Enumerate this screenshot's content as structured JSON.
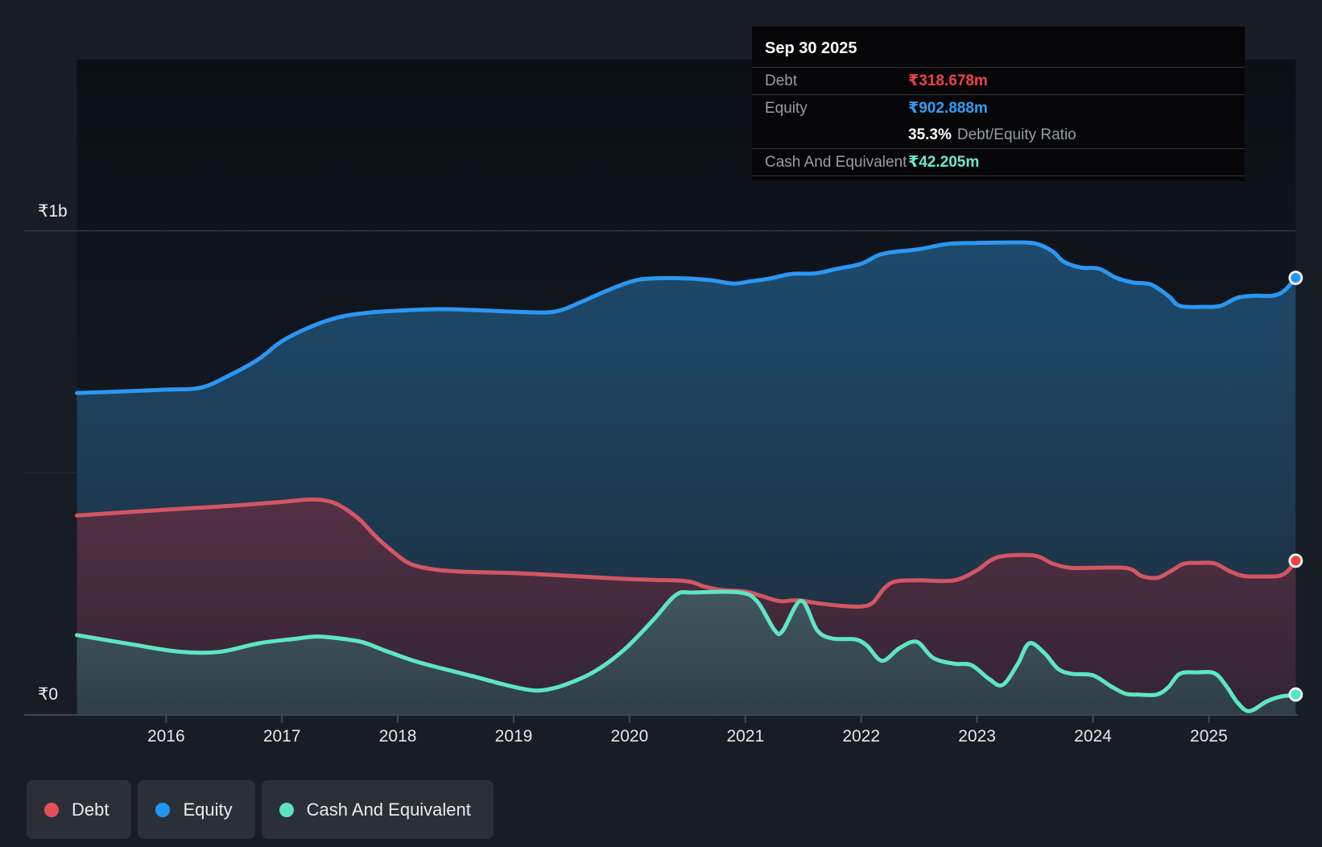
{
  "page": {
    "background": "#171c25"
  },
  "tooltip": {
    "date": "Sep 30 2025",
    "debt_label": "Debt",
    "debt_value": "₹318.678m",
    "debt_color": "#ef4146",
    "equity_label": "Equity",
    "equity_value": "₹902.888m",
    "equity_color": "#2f9ff4",
    "ratio_value": "35.3%",
    "ratio_label": "Debt/Equity Ratio",
    "cash_label": "Cash And Equivalent",
    "cash_value": "₹42.205m",
    "cash_color": "#6fe8cc"
  },
  "y_axis": {
    "top_label": "₹1b",
    "zero_label": "₹0"
  },
  "x_axis": {
    "years": [
      "2016",
      "2017",
      "2018",
      "2019",
      "2020",
      "2021",
      "2022",
      "2023",
      "2024",
      "2025"
    ]
  },
  "legend": [
    {
      "label": "Debt",
      "color": "#e4505a"
    },
    {
      "label": "Equity",
      "color": "#2196f3"
    },
    {
      "label": "Cash And Equivalent",
      "color": "#5ee3c1"
    }
  ],
  "chart_data": {
    "type": "area",
    "title": "",
    "unit": "INR millions",
    "x_range": [
      2015.23,
      2025.75
    ],
    "ylim": [
      0,
      1000
    ],
    "gridlines": [
      {
        "value": 1000,
        "label": "₹1b"
      },
      {
        "value": 500,
        "label": ""
      },
      {
        "value": 0,
        "label": "₹0"
      }
    ],
    "x_ticks": [
      2016,
      2017,
      2018,
      2019,
      2020,
      2021,
      2022,
      2023,
      2024,
      2025
    ],
    "legend_position": "bottom-left",
    "grid_colors": {
      "major": "#363d47",
      "minor": "#252b34",
      "axis": "#40464f"
    },
    "plot_bg_gradient": [
      "#0b0f16",
      "#18202a"
    ],
    "series": [
      {
        "name": "Equity",
        "line_color": "#2b97f1",
        "dot_color": "#2196f3",
        "fill_top": "#1d4a6c",
        "fill_bottom": "#1e2c3a",
        "end_value": 902.888,
        "points": [
          [
            2015.23,
            665
          ],
          [
            2015.6,
            668
          ],
          [
            2016,
            672
          ],
          [
            2016.3,
            676
          ],
          [
            2016.55,
            702
          ],
          [
            2016.8,
            735
          ],
          [
            2017,
            772
          ],
          [
            2017.25,
            802
          ],
          [
            2017.5,
            822
          ],
          [
            2017.75,
            831
          ],
          [
            2018,
            835
          ],
          [
            2018.3,
            838
          ],
          [
            2018.6,
            837
          ],
          [
            2019,
            833
          ],
          [
            2019.35,
            833
          ],
          [
            2019.6,
            855
          ],
          [
            2019.8,
            876
          ],
          [
            2020,
            894
          ],
          [
            2020.15,
            901
          ],
          [
            2020.45,
            902
          ],
          [
            2020.7,
            898
          ],
          [
            2020.9,
            891
          ],
          [
            2021.05,
            896
          ],
          [
            2021.2,
            901
          ],
          [
            2021.4,
            911
          ],
          [
            2021.6,
            912
          ],
          [
            2021.8,
            922
          ],
          [
            2022,
            932
          ],
          [
            2022.15,
            950
          ],
          [
            2022.3,
            957
          ],
          [
            2022.5,
            962
          ],
          [
            2022.75,
            973
          ],
          [
            2023,
            975
          ],
          [
            2023.3,
            976
          ],
          [
            2023.5,
            974
          ],
          [
            2023.65,
            958
          ],
          [
            2023.75,
            936
          ],
          [
            2023.9,
            924
          ],
          [
            2024.05,
            922
          ],
          [
            2024.2,
            903
          ],
          [
            2024.35,
            893
          ],
          [
            2024.5,
            889
          ],
          [
            2024.65,
            866
          ],
          [
            2024.75,
            845
          ],
          [
            2024.95,
            843
          ],
          [
            2025.1,
            845
          ],
          [
            2025.25,
            862
          ],
          [
            2025.4,
            866
          ],
          [
            2025.55,
            866
          ],
          [
            2025.65,
            876
          ],
          [
            2025.75,
            902.888
          ]
        ]
      },
      {
        "name": "Debt",
        "line_color": "#d25663",
        "dot_color": "#ee4340",
        "fill_top": "#543045",
        "fill_bottom": "#322432",
        "end_value": 318.678,
        "points": [
          [
            2015.23,
            412
          ],
          [
            2015.6,
            418
          ],
          [
            2016,
            424
          ],
          [
            2016.5,
            431
          ],
          [
            2017,
            440
          ],
          [
            2017.25,
            445
          ],
          [
            2017.45,
            438
          ],
          [
            2017.65,
            408
          ],
          [
            2017.8,
            371
          ],
          [
            2017.95,
            339
          ],
          [
            2018.1,
            313
          ],
          [
            2018.3,
            301
          ],
          [
            2018.55,
            296
          ],
          [
            2019,
            293
          ],
          [
            2019.5,
            287
          ],
          [
            2019.95,
            281
          ],
          [
            2020.2,
            279
          ],
          [
            2020.5,
            276
          ],
          [
            2020.65,
            265
          ],
          [
            2020.8,
            258
          ],
          [
            2021,
            255
          ],
          [
            2021.15,
            245
          ],
          [
            2021.3,
            235
          ],
          [
            2021.45,
            237
          ],
          [
            2021.65,
            230
          ],
          [
            2021.85,
            225
          ],
          [
            2022,
            224
          ],
          [
            2022.1,
            232
          ],
          [
            2022.2,
            262
          ],
          [
            2022.3,
            276
          ],
          [
            2022.5,
            278
          ],
          [
            2022.8,
            278
          ],
          [
            2023,
            299
          ],
          [
            2023.12,
            320
          ],
          [
            2023.25,
            329
          ],
          [
            2023.5,
            329
          ],
          [
            2023.65,
            313
          ],
          [
            2023.8,
            304
          ],
          [
            2024,
            304
          ],
          [
            2024.3,
            303
          ],
          [
            2024.42,
            287
          ],
          [
            2024.55,
            283
          ],
          [
            2024.65,
            294
          ],
          [
            2024.78,
            312
          ],
          [
            2024.9,
            314
          ],
          [
            2025.05,
            313
          ],
          [
            2025.18,
            297
          ],
          [
            2025.3,
            287
          ],
          [
            2025.45,
            286
          ],
          [
            2025.6,
            287
          ],
          [
            2025.68,
            297
          ],
          [
            2025.75,
            318.678
          ]
        ]
      },
      {
        "name": "Cash And Equivalent",
        "line_color": "#5fe5c3",
        "dot_color": "#52e5c8",
        "fill_top": "#41575f",
        "fill_bottom": "#2f3e46",
        "end_value": 42.205,
        "points": [
          [
            2015.23,
            165
          ],
          [
            2015.7,
            146
          ],
          [
            2016.1,
            131
          ],
          [
            2016.45,
            130
          ],
          [
            2016.8,
            148
          ],
          [
            2017.1,
            157
          ],
          [
            2017.3,
            162
          ],
          [
            2017.5,
            158
          ],
          [
            2017.7,
            150
          ],
          [
            2017.9,
            132
          ],
          [
            2018.15,
            111
          ],
          [
            2018.4,
            95
          ],
          [
            2018.65,
            80
          ],
          [
            2018.9,
            64
          ],
          [
            2019.1,
            53
          ],
          [
            2019.25,
            51
          ],
          [
            2019.45,
            63
          ],
          [
            2019.7,
            90
          ],
          [
            2019.95,
            134
          ],
          [
            2020.2,
            195
          ],
          [
            2020.4,
            248
          ],
          [
            2020.55,
            253
          ],
          [
            2020.95,
            253
          ],
          [
            2021.1,
            235
          ],
          [
            2021.25,
            176
          ],
          [
            2021.32,
            173
          ],
          [
            2021.48,
            236
          ],
          [
            2021.62,
            175
          ],
          [
            2021.75,
            158
          ],
          [
            2021.95,
            156
          ],
          [
            2022.05,
            143
          ],
          [
            2022.18,
            112
          ],
          [
            2022.33,
            138
          ],
          [
            2022.48,
            151
          ],
          [
            2022.62,
            118
          ],
          [
            2022.8,
            106
          ],
          [
            2022.95,
            103
          ],
          [
            2023.1,
            75
          ],
          [
            2023.22,
            62
          ],
          [
            2023.35,
            105
          ],
          [
            2023.45,
            148
          ],
          [
            2023.58,
            128
          ],
          [
            2023.7,
            95
          ],
          [
            2023.82,
            85
          ],
          [
            2024,
            82
          ],
          [
            2024.15,
            60
          ],
          [
            2024.28,
            44
          ],
          [
            2024.4,
            42
          ],
          [
            2024.55,
            42
          ],
          [
            2024.65,
            57
          ],
          [
            2024.75,
            85
          ],
          [
            2024.9,
            88
          ],
          [
            2025.05,
            86
          ],
          [
            2025.15,
            60
          ],
          [
            2025.25,
            25
          ],
          [
            2025.35,
            8
          ],
          [
            2025.5,
            28
          ],
          [
            2025.62,
            38
          ],
          [
            2025.7,
            40
          ],
          [
            2025.75,
            42.205
          ]
        ]
      }
    ]
  }
}
